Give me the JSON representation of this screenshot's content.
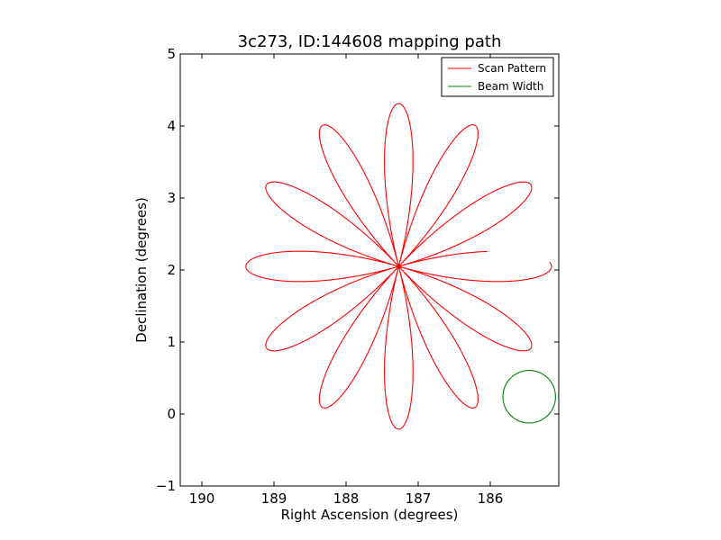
{
  "chart_data": {
    "type": "line",
    "title": "3c273, ID:144608 mapping path",
    "xlabel": "Right Ascension (degrees)",
    "ylabel": "Declination (degrees)",
    "xlim": [
      190.3,
      185.05
    ],
    "ylim": [
      -1,
      5
    ],
    "x_ticks": [
      190,
      189,
      188,
      187,
      186
    ],
    "y_ticks": [
      -1,
      0,
      1,
      2,
      3,
      4,
      5
    ],
    "x_tick_labels": [
      "190",
      "189",
      "188",
      "187",
      "186"
    ],
    "y_tick_labels": [
      "−1",
      "0",
      "1",
      "2",
      "3",
      "4",
      "5"
    ],
    "grid": false,
    "legend_position": "top-right",
    "colors": {
      "scan": "#ff0000",
      "beam": "#008000"
    },
    "series": [
      {
        "name": "Scan Pattern",
        "kind": "rose",
        "center": [
          187.27,
          2.05
        ],
        "radius_ra": 2.12,
        "radius_dec": 2.26,
        "petals": 12,
        "theta_start_deg": 178.5,
        "theta_end_deg": 531.0
      },
      {
        "name": "Beam Width",
        "kind": "circle",
        "center": [
          185.46,
          0.24
        ],
        "radius_ra": 0.365,
        "radius_dec": 0.365
      }
    ]
  }
}
